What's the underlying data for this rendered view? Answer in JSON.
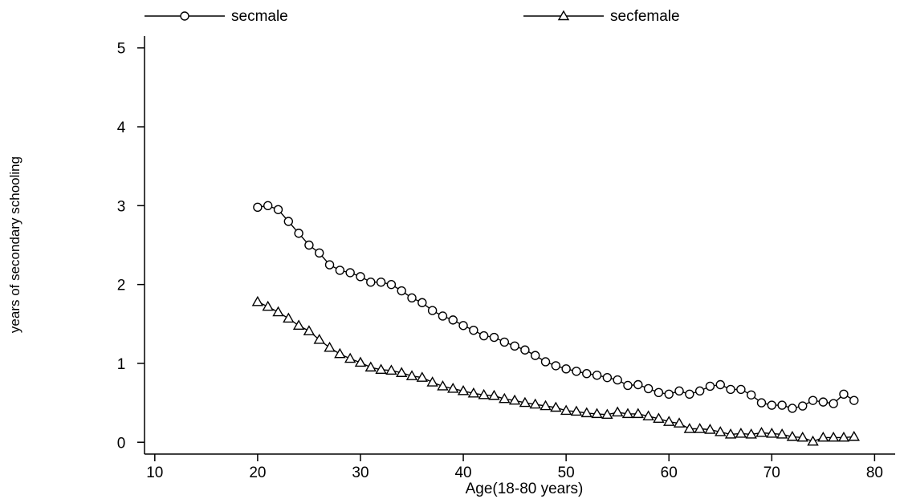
{
  "chart_data": {
    "type": "line",
    "title": "",
    "xlabel": "Age(18-80 years)",
    "ylabel": "years of secondary schooling",
    "xlim": [
      9,
      82
    ],
    "ylim": [
      -0.15,
      5.15
    ],
    "xticks": [
      10,
      20,
      30,
      40,
      50,
      60,
      70,
      80
    ],
    "yticks": [
      0,
      1,
      2,
      3,
      4,
      5
    ],
    "grid": false,
    "legend_position": "top",
    "x": [
      20,
      21,
      22,
      23,
      24,
      25,
      26,
      27,
      28,
      29,
      30,
      31,
      32,
      33,
      34,
      35,
      36,
      37,
      38,
      39,
      40,
      41,
      42,
      43,
      44,
      45,
      46,
      47,
      48,
      49,
      50,
      51,
      52,
      53,
      54,
      55,
      56,
      57,
      58,
      59,
      60,
      61,
      62,
      63,
      64,
      65,
      66,
      67,
      68,
      69,
      70,
      71,
      72,
      73,
      74,
      75,
      76,
      77,
      78
    ],
    "series": [
      {
        "name": "secmale",
        "marker": "circle",
        "values": [
          2.98,
          3.0,
          2.95,
          2.8,
          2.65,
          2.5,
          2.4,
          2.25,
          2.18,
          2.15,
          2.1,
          2.03,
          2.03,
          2.0,
          1.92,
          1.83,
          1.77,
          1.67,
          1.6,
          1.55,
          1.48,
          1.42,
          1.35,
          1.33,
          1.27,
          1.22,
          1.17,
          1.1,
          1.02,
          0.97,
          0.93,
          0.9,
          0.87,
          0.85,
          0.82,
          0.79,
          0.72,
          0.73,
          0.68,
          0.63,
          0.61,
          0.65,
          0.61,
          0.65,
          0.71,
          0.73,
          0.67,
          0.67,
          0.6,
          0.5,
          0.47,
          0.47,
          0.43,
          0.46,
          0.53,
          0.51,
          0.49,
          0.61,
          0.53
        ]
      },
      {
        "name": "secfemale",
        "marker": "triangle",
        "values": [
          1.78,
          1.72,
          1.65,
          1.57,
          1.48,
          1.41,
          1.3,
          1.2,
          1.12,
          1.06,
          1.01,
          0.95,
          0.92,
          0.91,
          0.88,
          0.84,
          0.82,
          0.76,
          0.71,
          0.68,
          0.65,
          0.62,
          0.6,
          0.59,
          0.55,
          0.53,
          0.5,
          0.48,
          0.46,
          0.44,
          0.4,
          0.39,
          0.37,
          0.36,
          0.35,
          0.38,
          0.36,
          0.36,
          0.33,
          0.3,
          0.26,
          0.24,
          0.17,
          0.17,
          0.16,
          0.13,
          0.1,
          0.11,
          0.1,
          0.12,
          0.11,
          0.1,
          0.07,
          0.06,
          0.01,
          0.06,
          0.06,
          0.06,
          0.07
        ]
      }
    ]
  }
}
